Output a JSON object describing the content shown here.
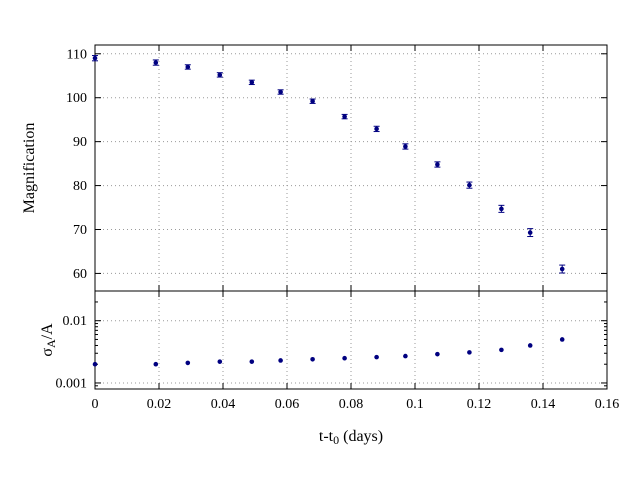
{
  "figure": {
    "background": "#ffffff",
    "border_color": "#000000",
    "grid_color": "#9a9a9a"
  },
  "chart_data": {
    "type": "scatter",
    "title": "",
    "xlabel_parts": [
      {
        "text": "t-t"
      },
      {
        "sub": "0"
      },
      {
        "text": " (days)"
      }
    ],
    "xlim": [
      0,
      0.16
    ],
    "xticks": [
      0,
      0.02,
      0.04,
      0.06,
      0.08,
      0.1,
      0.12,
      0.14,
      0.16
    ],
    "xtick_labels": [
      "0",
      "0.02",
      "0.04",
      "0.06",
      "0.08",
      "0.1",
      "0.12",
      "0.14",
      "0.16"
    ],
    "point_color": "#000080",
    "grid": true,
    "legend": "none",
    "panels": [
      {
        "name": "magnification-panel",
        "ylabel_parts": [
          {
            "text": "Magnification"
          }
        ],
        "yscale": "linear",
        "ylim": [
          56,
          112
        ],
        "yticks": [
          60,
          70,
          80,
          90,
          100,
          110
        ],
        "ytick_labels": [
          "60",
          "70",
          "80",
          "90",
          "100",
          "110"
        ],
        "x": [
          0.0,
          0.019,
          0.029,
          0.039,
          0.049,
          0.058,
          0.068,
          0.078,
          0.088,
          0.097,
          0.107,
          0.117,
          0.127,
          0.136,
          0.146
        ],
        "y": [
          109.0,
          108.0,
          107.0,
          105.2,
          103.5,
          101.3,
          99.2,
          95.7,
          92.9,
          88.9,
          84.8,
          80.1,
          74.7,
          69.3,
          61.0
        ],
        "yerr": [
          0.6,
          0.6,
          0.5,
          0.5,
          0.5,
          0.5,
          0.5,
          0.5,
          0.6,
          0.6,
          0.6,
          0.7,
          0.8,
          0.9,
          0.9
        ]
      },
      {
        "name": "sigma-ratio-panel",
        "ylabel_parts": [
          {
            "text": "σ"
          },
          {
            "sub": "A"
          },
          {
            "text": "/A"
          }
        ],
        "yscale": "log",
        "ylim": [
          0.0008,
          0.03
        ],
        "yticks": [
          0.001,
          0.01
        ],
        "ytick_labels": [
          "0.001",
          "0.01"
        ],
        "x": [
          0.0,
          0.019,
          0.029,
          0.039,
          0.049,
          0.058,
          0.068,
          0.078,
          0.088,
          0.097,
          0.107,
          0.117,
          0.127,
          0.136,
          0.146
        ],
        "y": [
          0.002,
          0.002,
          0.0021,
          0.0022,
          0.0022,
          0.0023,
          0.0024,
          0.0025,
          0.0026,
          0.0027,
          0.0029,
          0.0031,
          0.0034,
          0.004,
          0.005
        ]
      }
    ]
  }
}
